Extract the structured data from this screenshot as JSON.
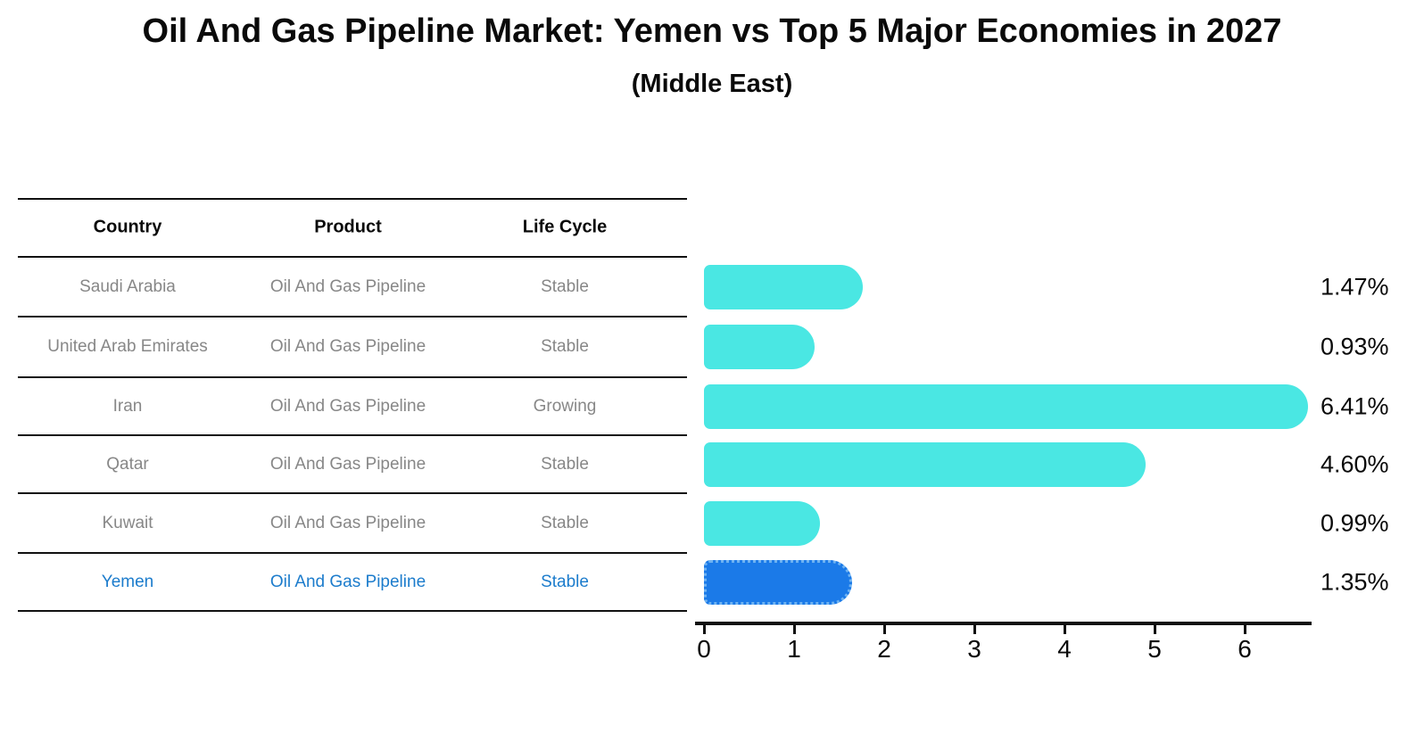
{
  "header": {
    "title": "Oil And Gas Pipeline Market: Yemen vs Top 5 Major Economies in 2027",
    "subtitle": "(Middle East)"
  },
  "table": {
    "headers": [
      "Country",
      "Product",
      "Life Cycle"
    ],
    "rows": [
      {
        "country": "Saudi Arabia",
        "product": "Oil And Gas Pipeline",
        "life_cycle": "Stable",
        "highlight": false
      },
      {
        "country": "United Arab Emirates",
        "product": "Oil And Gas Pipeline",
        "life_cycle": "Stable",
        "highlight": false
      },
      {
        "country": "Iran",
        "product": "Oil And Gas Pipeline",
        "life_cycle": "Growing",
        "highlight": false
      },
      {
        "country": "Qatar",
        "product": "Oil And Gas Pipeline",
        "life_cycle": "Stable",
        "highlight": false
      },
      {
        "country": "Kuwait",
        "product": "Oil And Gas Pipeline",
        "life_cycle": "Stable",
        "highlight": false
      },
      {
        "country": "Yemen",
        "product": "Oil And Gas Pipeline",
        "life_cycle": "Stable",
        "highlight": true
      }
    ]
  },
  "chart_data": {
    "type": "bar",
    "orientation": "horizontal",
    "title": "Oil And Gas Pipeline Market: Yemen vs Top 5 Major Economies in 2027",
    "subtitle": "(Middle East)",
    "categories": [
      "Saudi Arabia",
      "United Arab Emirates",
      "Iran",
      "Qatar",
      "Kuwait",
      "Yemen"
    ],
    "values": [
      1.47,
      0.93,
      6.41,
      4.6,
      0.99,
      1.35
    ],
    "value_labels": [
      "1.47%",
      "0.93%",
      "6.41%",
      "4.60%",
      "0.99%",
      "1.35%"
    ],
    "xlabel": "",
    "ylabel": "",
    "xlim": [
      0,
      6.72
    ],
    "xticks": [
      0,
      1,
      2,
      3,
      4,
      5,
      6
    ],
    "grid": false,
    "legend": "none",
    "highlight_index": 5,
    "bar_color": "#4ae7e3",
    "highlight_color": "#1b7ae8",
    "highlight_border_color": "#6fb3f2",
    "highlight_text_color": "#1c7ccc",
    "row_text_color": "#878787"
  }
}
